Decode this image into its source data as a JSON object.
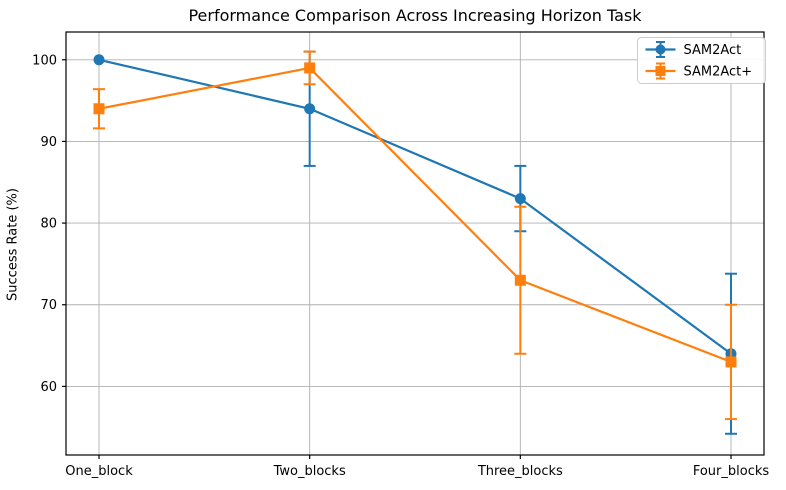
{
  "figure": {
    "title": "Performance Comparison Across Increasing Horizon Task",
    "ylabel": "Success Rate (%)",
    "xlabel": "",
    "background": "#ffffff"
  },
  "legend": {
    "position": "upper-right",
    "border_color": "#cccccc",
    "items": [
      {
        "label": "SAM2Act",
        "color": "#1f77b4",
        "marker": "circle"
      },
      {
        "label": "SAM2Act+",
        "color": "#ff7f0e",
        "marker": "square"
      }
    ]
  },
  "chart_data": {
    "type": "line",
    "title": "Performance Comparison Across Increasing Horizon Task",
    "xlabel": "",
    "ylabel": "Success Rate (%)",
    "categories": [
      "One_block",
      "Two_blocks",
      "Three_blocks",
      "Four_blocks"
    ],
    "series": [
      {
        "name": "SAM2Act",
        "color": "#1f77b4",
        "marker": "circle",
        "values": [
          100,
          94,
          83,
          64
        ],
        "errors": [
          0,
          7,
          4,
          9.8
        ]
      },
      {
        "name": "SAM2Act+",
        "color": "#ff7f0e",
        "marker": "square",
        "values": [
          94,
          99,
          73,
          63
        ],
        "errors": [
          2.4,
          2,
          9,
          7
        ]
      }
    ],
    "yticks": [
      60,
      70,
      80,
      90,
      100
    ],
    "ylim": [
      51.6,
      103.4
    ],
    "grid": true,
    "grid_color": "#b0b0b0",
    "axis_color": "#000000",
    "legend_position": "upper right"
  }
}
